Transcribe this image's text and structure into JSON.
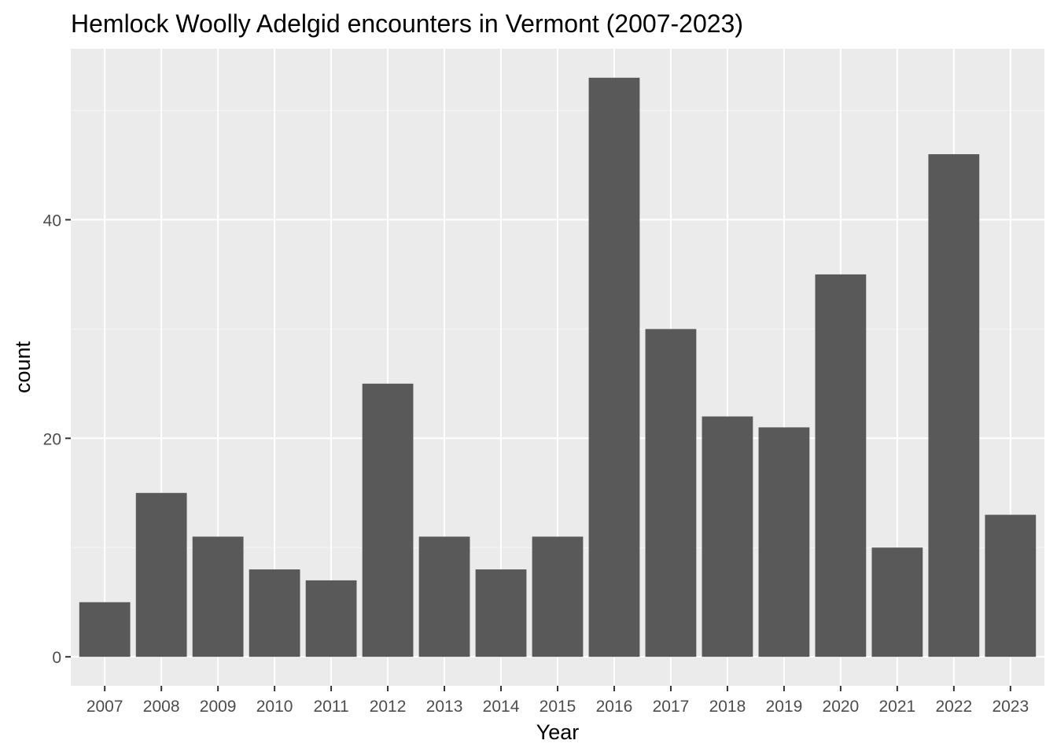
{
  "chart_data": {
    "type": "bar",
    "title": "Hemlock Woolly Adelgid encounters in Vermont (2007-2023)",
    "xlabel": "Year",
    "ylabel": "count",
    "categories": [
      "2007",
      "2008",
      "2009",
      "2010",
      "2011",
      "2012",
      "2013",
      "2014",
      "2015",
      "2016",
      "2017",
      "2018",
      "2019",
      "2020",
      "2021",
      "2022",
      "2023"
    ],
    "values": [
      5,
      15,
      11,
      8,
      7,
      25,
      11,
      8,
      11,
      53,
      30,
      22,
      21,
      35,
      10,
      46,
      13
    ],
    "yticks": [
      0,
      20,
      40
    ],
    "ylim": [
      -2.65,
      55.65
    ],
    "grid": true,
    "legend": "none",
    "colors": {
      "bar": "#595959",
      "panel": "#ebebeb",
      "grid_major": "#ffffff",
      "grid_minor": "#f5f5f5",
      "tick": "#333333",
      "tick_label": "#4d4d4d"
    }
  }
}
